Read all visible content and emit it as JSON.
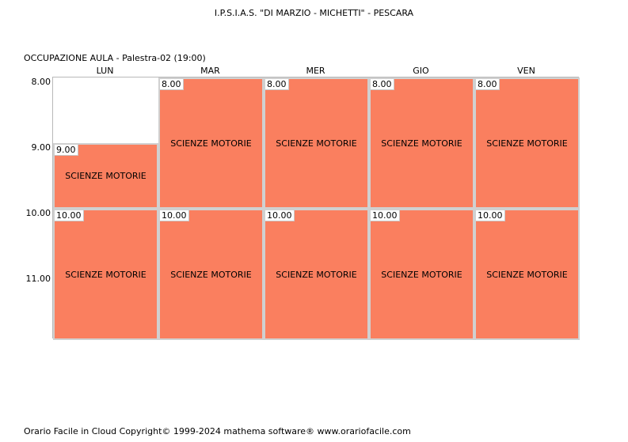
{
  "header": {
    "school": "I.P.S.I.A.S. \"DI MARZIO - MICHETTI\" - PESCARA",
    "room": "OCCUPAZIONE AULA   -   Palestra-02  (19:00)"
  },
  "days": [
    "LUN",
    "MAR",
    "MER",
    "GIO",
    "VEN"
  ],
  "hours": [
    "8.00",
    "9.00",
    "10.00",
    "11.00"
  ],
  "lesson_color": "#fa7f5f",
  "lessons": [
    {
      "day": 0,
      "start": 1,
      "span": 1,
      "time": "9.00",
      "subject": "SCIENZE MOTORIE"
    },
    {
      "day": 0,
      "start": 2,
      "span": 2,
      "time": "10.00",
      "subject": "SCIENZE MOTORIE"
    },
    {
      "day": 1,
      "start": 0,
      "span": 2,
      "time": "8.00",
      "subject": "SCIENZE MOTORIE"
    },
    {
      "day": 1,
      "start": 2,
      "span": 2,
      "time": "10.00",
      "subject": "SCIENZE MOTORIE"
    },
    {
      "day": 2,
      "start": 0,
      "span": 2,
      "time": "8.00",
      "subject": "SCIENZE MOTORIE"
    },
    {
      "day": 2,
      "start": 2,
      "span": 2,
      "time": "10.00",
      "subject": "SCIENZE MOTORIE"
    },
    {
      "day": 3,
      "start": 0,
      "span": 2,
      "time": "8.00",
      "subject": "SCIENZE MOTORIE"
    },
    {
      "day": 3,
      "start": 2,
      "span": 2,
      "time": "10.00",
      "subject": "SCIENZE MOTORIE"
    },
    {
      "day": 4,
      "start": 0,
      "span": 2,
      "time": "8.00",
      "subject": "SCIENZE MOTORIE"
    },
    {
      "day": 4,
      "start": 2,
      "span": 2,
      "time": "10.00",
      "subject": "SCIENZE MOTORIE"
    }
  ],
  "footer": "Orario Facile in Cloud  Copyright© 1999-2024 mathema software®     www.orariofacile.com"
}
